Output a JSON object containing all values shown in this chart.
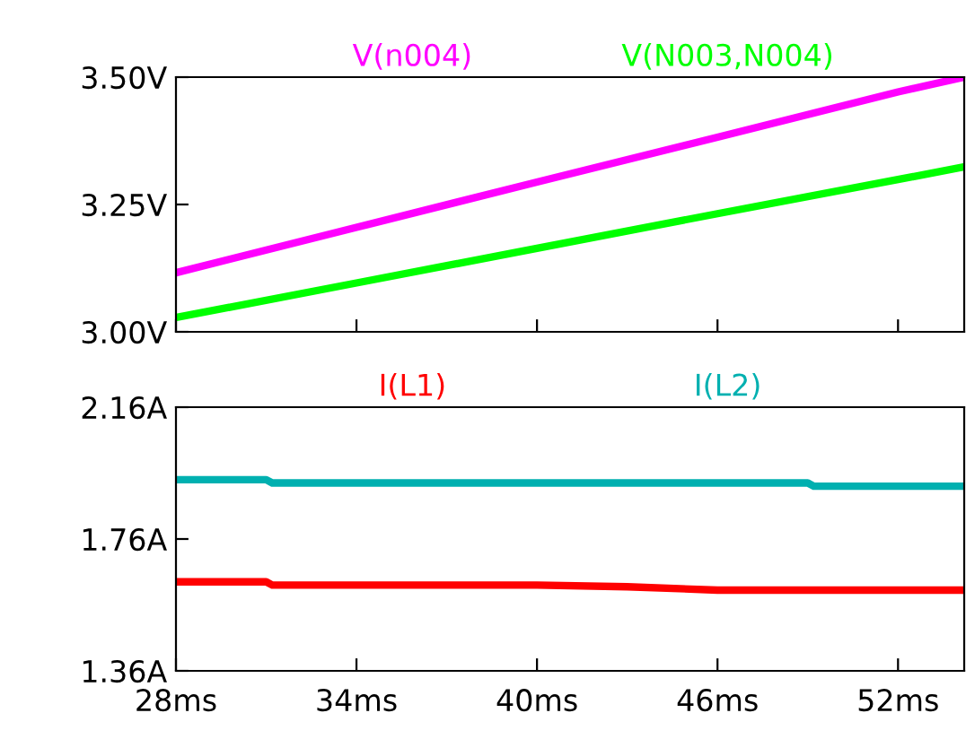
{
  "chart_data": [
    {
      "type": "line",
      "x": [
        28,
        34,
        40,
        46,
        52,
        54.2
      ],
      "xlim": [
        28,
        54.2
      ],
      "ylim": [
        3.0,
        3.5
      ],
      "yticks": [
        {
          "value": 3.0,
          "label": "3.00V"
        },
        {
          "value": 3.25,
          "label": "3.25V"
        },
        {
          "value": 3.5,
          "label": "3.50V"
        }
      ],
      "xticks": [
        {
          "value": 28,
          "label": null
        },
        {
          "value": 34,
          "label": null
        },
        {
          "value": 40,
          "label": null
        },
        {
          "value": 46,
          "label": null
        },
        {
          "value": 52,
          "label": null
        }
      ],
      "tick_labels": "y",
      "grid": false,
      "legend": "top",
      "series": [
        {
          "name": "V(n004)",
          "color": "#ff00ff",
          "values": [
            3.116,
            3.205,
            3.294,
            3.382,
            3.471,
            3.5
          ]
        },
        {
          "name": "V(N003,N004)",
          "color": "#00ff00",
          "values": [
            3.028,
            3.096,
            3.164,
            3.232,
            3.299,
            3.324
          ]
        }
      ]
    },
    {
      "type": "line",
      "x": [
        28,
        31,
        31.2,
        37,
        40,
        43,
        46,
        49,
        49.2,
        52,
        54.2
      ],
      "xlim": [
        28,
        54.2
      ],
      "ylim": [
        1.36,
        2.16
      ],
      "yticks": [
        {
          "value": 1.36,
          "label": "1.36A"
        },
        {
          "value": 1.76,
          "label": "1.76A"
        },
        {
          "value": 2.16,
          "label": "2.16A"
        }
      ],
      "xticks": [
        {
          "value": 28,
          "label": "28ms"
        },
        {
          "value": 34,
          "label": "34ms"
        },
        {
          "value": 40,
          "label": "40ms"
        },
        {
          "value": 46,
          "label": "46ms"
        },
        {
          "value": 52,
          "label": "52ms"
        }
      ],
      "grid": false,
      "legend": "top",
      "series": [
        {
          "name": "I(L1)",
          "color": "#ff0000",
          "values": [
            1.63,
            1.63,
            1.62,
            1.62,
            1.62,
            1.615,
            1.605,
            1.605,
            1.605,
            1.605,
            1.605
          ]
        },
        {
          "name": "I(L2)",
          "color": "#00b0b0",
          "values": [
            1.94,
            1.94,
            1.93,
            1.93,
            1.93,
            1.93,
            1.93,
            1.93,
            1.92,
            1.92,
            1.92
          ]
        }
      ]
    }
  ]
}
